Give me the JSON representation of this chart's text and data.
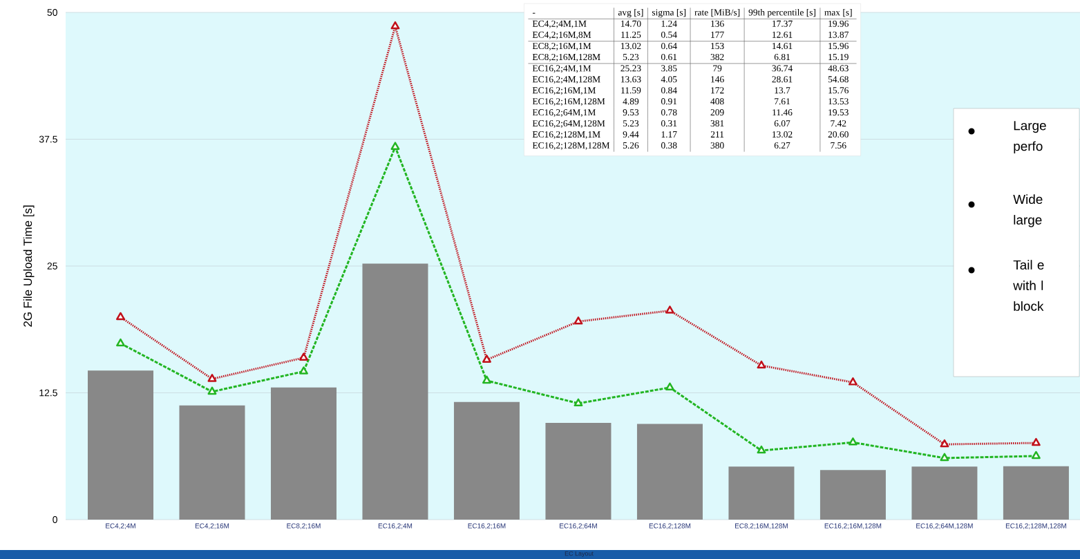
{
  "chart_data": {
    "type": "bar",
    "xlabel": "EC Layout",
    "ylabel": "2G File Upload Time [s]",
    "categories": [
      "EC4,2;4M",
      "EC4,2;16M",
      "EC8,2;16M",
      "EC16,2;4M",
      "EC16,2;16M",
      "EC16,2;64M",
      "EC16,2;128M",
      "EC8,2;16M,128M",
      "EC16,2;16M,128M",
      "EC16,2;64M,128M",
      "EC16,2;128M,128M"
    ],
    "series": [
      {
        "color": "#888888",
        "values": [
          14.7,
          11.25,
          13.02,
          25.23,
          11.59,
          9.53,
          9.44,
          5.23,
          4.89,
          5.23,
          5.26
        ]
      },
      {
        "type": "line",
        "color": "#22b522",
        "marker": "triangle",
        "line_style": "dashed",
        "values": [
          17.37,
          12.61,
          14.61,
          36.74,
          13.7,
          11.46,
          13.02,
          6.81,
          7.61,
          6.07,
          6.27
        ]
      },
      {
        "type": "line",
        "color": "#c0101a",
        "marker": "triangle",
        "line_style": "dotted",
        "values": [
          19.96,
          13.87,
          15.96,
          48.63,
          15.76,
          19.53,
          20.6,
          15.19,
          13.53,
          7.42,
          7.56
        ]
      }
    ],
    "ylim": [
      0,
      50
    ],
    "yticks": [
      0,
      12.5,
      25,
      37.5,
      50
    ],
    "grid": "y",
    "annotations": [
      "-",
      "avg [s]",
      "sigma [s]",
      "rate [MiB/s]",
      "99th percentile [s]",
      "max [s]",
      "EC4,2;4M,1M",
      "14.70",
      "1.24",
      "136",
      "17.37",
      "19.96",
      "EC4,2;16M,8M",
      "11.25",
      "0.54",
      "177",
      "12.61",
      "13.87",
      "EC8,2;16M,1M",
      "13.02",
      "0.64",
      "153",
      "14.61",
      "15.96",
      "EC8,2;16M,128M",
      "5.23",
      "0.61",
      "382",
      "6.81",
      "15.19",
      "EC16,2;4M,1M",
      "25.23",
      "3.85",
      "79",
      "36.74",
      "48.63",
      "EC16,2;4M,128M",
      "13.63",
      "4.05",
      "146",
      "28.61",
      "54.68",
      "EC16,2;16M,1M",
      "11.59",
      "0.84",
      "172",
      "13.7",
      "15.76",
      "EC16,2;16M,128M",
      "4.89",
      "0.91",
      "408",
      "7.61",
      "13.53",
      "EC16,2;64M,1M",
      "9.53",
      "0.78",
      "209",
      "11.46",
      "19.53",
      "EC16,2;64M,128M",
      "5.23",
      "0.31",
      "381",
      "6.07",
      "7.42",
      "EC16,2;128M,1M",
      "9.44",
      "1.17",
      "211",
      "13.02",
      "20.60",
      "EC16,2;128M,128M",
      "5.26",
      "0.38",
      "380",
      "6.27",
      "7.56",
      "Large perfo",
      "Wide large",
      "Tail e with l block"
    ]
  }
}
